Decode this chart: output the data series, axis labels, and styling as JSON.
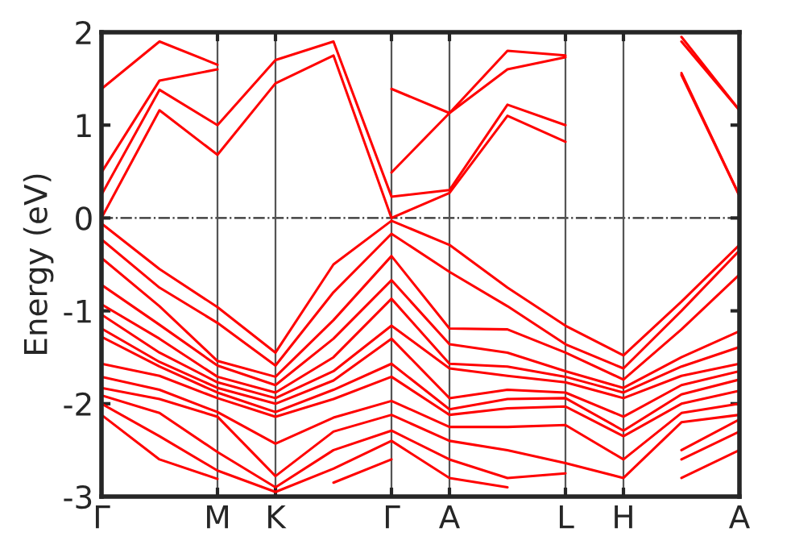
{
  "chart_data": {
    "type": "line",
    "ylabel": "Energy (eV)",
    "categories": [
      "Γ",
      null,
      "M",
      "K",
      null,
      "Γ",
      "A",
      null,
      "L",
      "H",
      null,
      "A"
    ],
    "ylim": [
      -3,
      2
    ],
    "yticks": [
      -3,
      -2,
      -1,
      0,
      1,
      2
    ],
    "grid": "x",
    "legend": false,
    "marker": "none",
    "line_style": "solid",
    "ref_lines": [
      {
        "axis": "y",
        "value": 0,
        "color": "#333333",
        "line_style": "dashed"
      }
    ],
    "series": [
      {
        "color": "#ff0000",
        "values": [
          0.0,
          1.16,
          0.68,
          1.45,
          1.75,
          0.0,
          0.27,
          1.1,
          0.82,
          null,
          1.54,
          0.24
        ]
      },
      {
        "color": "#ff0000",
        "values": [
          0.25,
          1.38,
          1.0,
          1.7,
          1.9,
          0.23,
          0.3,
          1.22,
          1.0,
          null,
          1.56,
          0.24
        ]
      },
      {
        "color": "#ff0000",
        "values": [
          0.49,
          1.48,
          1.6,
          null,
          null,
          0.49,
          1.13,
          1.6,
          1.73,
          null,
          1.9,
          1.16
        ]
      },
      {
        "color": "#ff0000",
        "values": [
          1.39,
          1.9,
          1.65,
          null,
          null,
          1.39,
          1.13,
          1.8,
          1.75,
          null,
          1.95,
          1.16
        ]
      },
      {
        "color": "#ff0000",
        "values": [
          -0.06,
          -0.55,
          -0.96,
          -1.45,
          -0.5,
          -0.03,
          -0.29,
          -0.75,
          -1.16,
          -1.48,
          -0.9,
          -0.29
        ]
      },
      {
        "color": "#ff0000",
        "values": [
          -0.23,
          -0.75,
          -1.13,
          -1.59,
          -0.8,
          -0.17,
          -0.58,
          -0.95,
          -1.36,
          -1.62,
          -1.0,
          -0.35
        ]
      },
      {
        "color": "#ff0000",
        "values": [
          -0.43,
          -0.95,
          -1.54,
          -1.71,
          -1.1,
          -0.41,
          -1.19,
          -1.2,
          -1.45,
          -1.74,
          -1.2,
          -0.61
        ]
      },
      {
        "color": "#ff0000",
        "values": [
          -0.72,
          -1.15,
          -1.59,
          -1.8,
          -1.3,
          -0.67,
          -1.36,
          -1.45,
          -1.65,
          -1.83,
          -1.5,
          -1.22
        ]
      },
      {
        "color": "#ff0000",
        "values": [
          -0.93,
          -1.3,
          -1.71,
          -1.88,
          -1.5,
          -0.87,
          -1.57,
          -1.6,
          -1.71,
          -1.88,
          -1.6,
          -1.39
        ]
      },
      {
        "color": "#ff0000",
        "values": [
          -1.04,
          -1.45,
          -1.77,
          -1.94,
          -1.65,
          -1.16,
          -1.62,
          -1.7,
          -1.77,
          -1.94,
          -1.7,
          -1.57
        ]
      },
      {
        "color": "#ff0000",
        "values": [
          -1.19,
          -1.55,
          -1.83,
          -2.0,
          -1.75,
          -1.3,
          -1.94,
          -1.85,
          -1.88,
          -2.14,
          -1.8,
          -1.65
        ]
      },
      {
        "color": "#ff0000",
        "values": [
          -1.28,
          -1.6,
          -1.88,
          -2.09,
          -1.85,
          -1.57,
          -2.06,
          -1.95,
          -1.94,
          -2.29,
          -1.9,
          -1.74
        ]
      },
      {
        "color": "#ff0000",
        "values": [
          -1.57,
          -1.7,
          -1.94,
          -2.14,
          -1.95,
          -1.71,
          -2.12,
          -2.05,
          -2.03,
          -2.35,
          -2.0,
          -1.86
        ]
      },
      {
        "color": "#ff0000",
        "values": [
          -1.71,
          -1.85,
          -2.09,
          -2.43,
          -2.15,
          -1.97,
          -2.25,
          -2.25,
          -2.23,
          -2.6,
          -2.1,
          -2.0
        ]
      },
      {
        "color": "#ff0000",
        "values": [
          -1.83,
          -1.95,
          -2.14,
          -2.78,
          -2.3,
          -2.12,
          -2.4,
          -2.5,
          -2.64,
          -2.8,
          -2.2,
          -2.12
        ]
      },
      {
        "color": "#ff0000",
        "values": [
          -1.91,
          -2.1,
          -2.52,
          -2.9,
          -2.5,
          -2.29,
          -2.6,
          -2.8,
          -2.75,
          null,
          -2.5,
          -2.17
        ]
      },
      {
        "color": "#ff0000",
        "values": [
          -2.0,
          -2.35,
          -2.72,
          -2.95,
          -2.7,
          -2.4,
          -2.8,
          -2.9,
          null,
          null,
          -2.6,
          -2.3
        ]
      },
      {
        "color": "#ff0000",
        "values": [
          -2.12,
          -2.6,
          -2.81,
          null,
          -2.85,
          -2.6,
          null,
          null,
          null,
          null,
          -2.8,
          -2.5
        ]
      }
    ]
  }
}
